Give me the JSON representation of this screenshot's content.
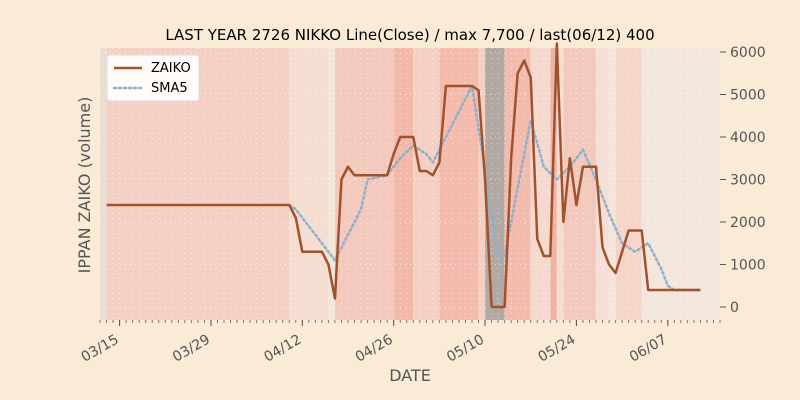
{
  "chart_data": {
    "type": "line",
    "title": "LAST YEAR 2726 NIKKO Line(Close) / max 7,700 / last(06/12) 400",
    "xlabel": "DATE",
    "ylabel": "IPPAN ZAIKO (volume)",
    "ylim": [
      0,
      6000
    ],
    "xlim": [
      "03/12",
      "06/15"
    ],
    "grid": true,
    "legend_position": "top-left",
    "y_ticks": [
      0,
      1000,
      2000,
      3000,
      4000,
      5000,
      6000
    ],
    "x_ticks": [
      {
        "date": "03/15",
        "label": "03/15"
      },
      {
        "date": "03/29",
        "label": "03/29"
      },
      {
        "date": "04/12",
        "label": "04/12"
      },
      {
        "date": "04/26",
        "label": "04/26"
      },
      {
        "date": "05/10",
        "label": "05/10"
      },
      {
        "date": "05/24",
        "label": "05/24"
      },
      {
        "date": "06/07",
        "label": "06/07"
      }
    ],
    "series": [
      {
        "name": "ZAIKO",
        "color": "#a0522d",
        "style": "solid",
        "points": [
          [
            "03/13",
            2400
          ],
          [
            "04/10",
            2400
          ],
          [
            "04/11",
            2100
          ],
          [
            "04/12",
            1300
          ],
          [
            "04/15",
            1300
          ],
          [
            "04/16",
            1000
          ],
          [
            "04/17",
            200
          ],
          [
            "04/18",
            3000
          ],
          [
            "04/19",
            3300
          ],
          [
            "04/20",
            3100
          ],
          [
            "04/25",
            3100
          ],
          [
            "04/26",
            3600
          ],
          [
            "04/27",
            4000
          ],
          [
            "04/29",
            4000
          ],
          [
            "04/30",
            3200
          ],
          [
            "05/01",
            3200
          ],
          [
            "05/02",
            3100
          ],
          [
            "05/03",
            3400
          ],
          [
            "05/04",
            5200
          ],
          [
            "05/08",
            5200
          ],
          [
            "05/09",
            5100
          ],
          [
            "05/10",
            3000
          ],
          [
            "05/11",
            0
          ],
          [
            "05/13",
            0
          ],
          [
            "05/14",
            3500
          ],
          [
            "05/15",
            5500
          ],
          [
            "05/16",
            5800
          ],
          [
            "05/17",
            5400
          ],
          [
            "05/18",
            1600
          ],
          [
            "05/19",
            1200
          ],
          [
            "05/20",
            1200
          ],
          [
            "05/21",
            6200
          ],
          [
            "05/22",
            2000
          ],
          [
            "05/23",
            3500
          ],
          [
            "05/24",
            2400
          ],
          [
            "05/25",
            3300
          ],
          [
            "05/27",
            3300
          ],
          [
            "05/28",
            1400
          ],
          [
            "05/29",
            1000
          ],
          [
            "05/30",
            800
          ],
          [
            "06/01",
            1800
          ],
          [
            "06/03",
            1800
          ],
          [
            "06/04",
            400
          ],
          [
            "06/12",
            400
          ]
        ]
      },
      {
        "name": "SMA5",
        "color": "#8fb0c8",
        "style": "dotted",
        "points": [
          [
            "04/10",
            2400
          ],
          [
            "04/11",
            2300
          ],
          [
            "04/13",
            1900
          ],
          [
            "04/15",
            1500
          ],
          [
            "04/17",
            1100
          ],
          [
            "04/19",
            1700
          ],
          [
            "04/21",
            2300
          ],
          [
            "04/22",
            3000
          ],
          [
            "04/25",
            3100
          ],
          [
            "04/27",
            3500
          ],
          [
            "04/29",
            3800
          ],
          [
            "05/01",
            3600
          ],
          [
            "05/02",
            3400
          ],
          [
            "05/04",
            4000
          ],
          [
            "05/06",
            4600
          ],
          [
            "05/08",
            5200
          ],
          [
            "05/10",
            3200
          ],
          [
            "05/12",
            1200
          ],
          [
            "05/13",
            1200
          ],
          [
            "05/15",
            2800
          ],
          [
            "05/17",
            4400
          ],
          [
            "05/19",
            3300
          ],
          [
            "05/21",
            3000
          ],
          [
            "05/23",
            3300
          ],
          [
            "05/25",
            3700
          ],
          [
            "05/27",
            3000
          ],
          [
            "05/29",
            2200
          ],
          [
            "05/31",
            1500
          ],
          [
            "06/02",
            1300
          ],
          [
            "06/04",
            1500
          ],
          [
            "06/06",
            900
          ],
          [
            "06/07",
            500
          ],
          [
            "06/08",
            400
          ],
          [
            "06/12",
            400
          ]
        ]
      }
    ],
    "background_bands": [
      {
        "from": "03/12",
        "to": "03/13",
        "color": "#e9dcd2"
      },
      {
        "from": "03/13",
        "to": "04/10",
        "color": "#f4d0c4"
      },
      {
        "from": "04/10",
        "to": "04/16",
        "color": "#f5ddd2"
      },
      {
        "from": "04/16",
        "to": "04/17",
        "color": "#f3e6db"
      },
      {
        "from": "04/17",
        "to": "04/26",
        "color": "#f3c9bd"
      },
      {
        "from": "04/26",
        "to": "04/29",
        "color": "#f2b9ab"
      },
      {
        "from": "04/29",
        "to": "05/03",
        "color": "#f4d0c4"
      },
      {
        "from": "05/03",
        "to": "05/09",
        "color": "#f2bbad"
      },
      {
        "from": "05/09",
        "to": "05/10",
        "color": "#f4d0c4"
      },
      {
        "from": "05/10",
        "to": "05/13",
        "color": "#b2a8a4"
      },
      {
        "from": "05/13",
        "to": "05/17",
        "color": "#f2bbad"
      },
      {
        "from": "05/17",
        "to": "05/20",
        "color": "#f5d9ce"
      },
      {
        "from": "05/20",
        "to": "05/21",
        "color": "#f0b4a6"
      },
      {
        "from": "05/21",
        "to": "05/22",
        "color": "#f5ddd2"
      },
      {
        "from": "05/22",
        "to": "05/27",
        "color": "#f3c9bd"
      },
      {
        "from": "05/27",
        "to": "05/29",
        "color": "#f5dfd6"
      },
      {
        "from": "05/29",
        "to": "05/30",
        "color": "#f3e6db"
      },
      {
        "from": "05/30",
        "to": "06/03",
        "color": "#f5d5ca"
      },
      {
        "from": "06/03",
        "to": "06/15",
        "color": "#f3e6dc"
      }
    ]
  }
}
